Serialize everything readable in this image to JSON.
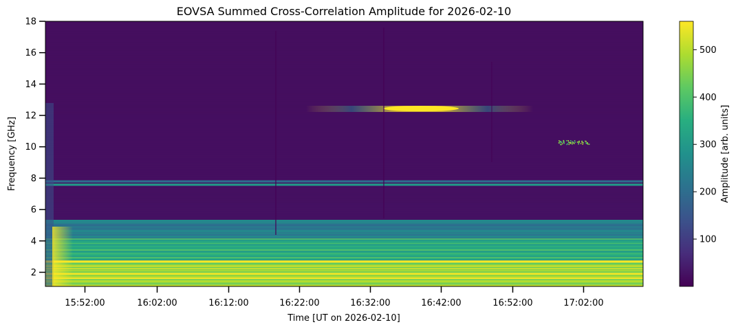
{
  "chart_data": {
    "type": "heatmap",
    "title": "EOVSA Summed Cross-Correlation Amplitude for 2026-02-10",
    "xlabel": "Time [UT on 2026-02-10]",
    "ylabel": "Frequency [GHz]",
    "colorbar_label": "Amplitude [arb. units]",
    "x_tick_labels": [
      "15:52:00",
      "16:02:00",
      "16:12:00",
      "16:22:00",
      "16:32:00",
      "16:42:00",
      "16:52:00",
      "17:02:00"
    ],
    "y_ticks": [
      2,
      4,
      6,
      8,
      10,
      12,
      14,
      16,
      18
    ],
    "colorbar_ticks": [
      100,
      200,
      300,
      400,
      500
    ],
    "xlim": [
      "15:46:30",
      "17:10:30"
    ],
    "ylim": [
      1.1,
      18
    ],
    "color_range": [
      0,
      560
    ],
    "colormap": "viridis",
    "features": [
      {
        "feature": "continuum",
        "freq_range": [
          1.1,
          2.8
        ],
        "amplitude": 540
      },
      {
        "feature": "band",
        "freq_range": [
          2.8,
          4.2
        ],
        "amplitude": 380
      },
      {
        "feature": "band",
        "freq_range": [
          4.2,
          5.4
        ],
        "amplitude": 260
      },
      {
        "feature": "line",
        "freq": 7.6,
        "amplitude": 300
      },
      {
        "feature": "line",
        "freq": 7.8,
        "amplitude": 200
      },
      {
        "feature": "burst",
        "freq": 12.4,
        "time_range": [
          "16:37:30",
          "16:45:30"
        ],
        "amplitude": 560
      },
      {
        "feature": "sparkles",
        "freq": 10.3,
        "time_range": [
          "16:58:30",
          "17:03:00"
        ],
        "amplitude": 520
      }
    ]
  }
}
